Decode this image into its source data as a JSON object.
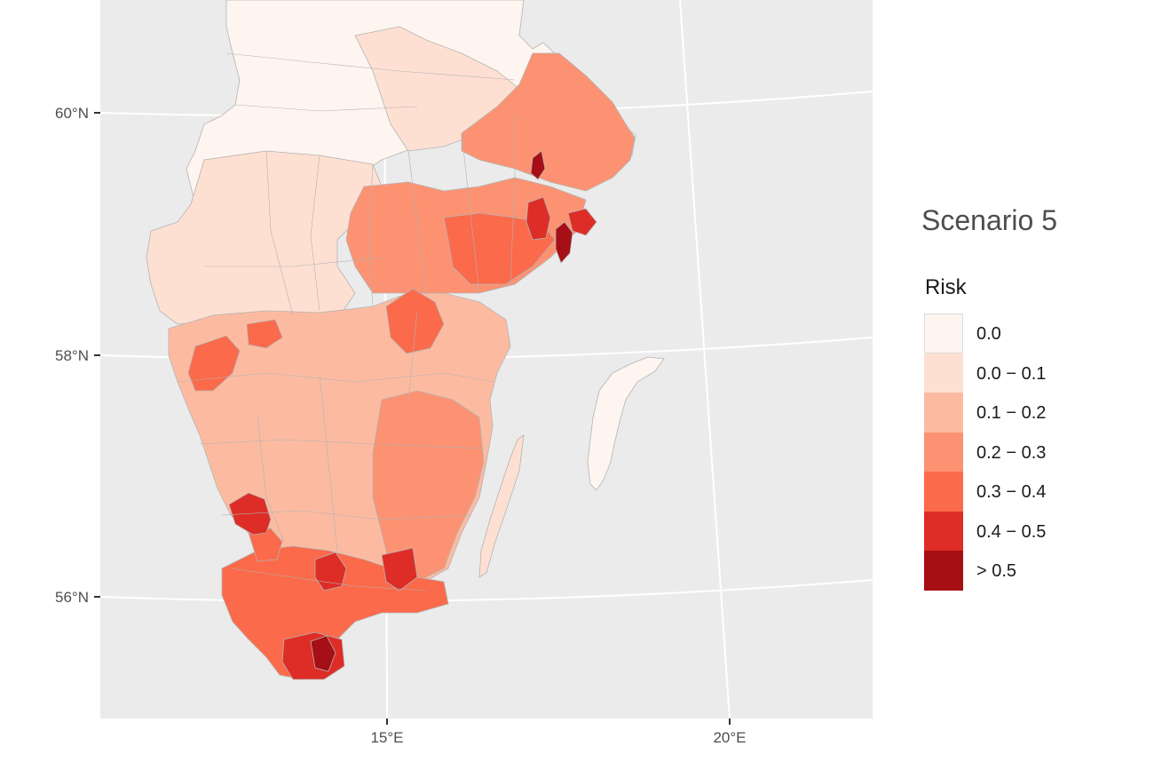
{
  "map": {
    "title": "Scenario 5",
    "legend_title": "Risk",
    "lat_labels": [
      "60°N",
      "58°N",
      "56°N"
    ],
    "lon_labels": [
      "15°E",
      "20°E"
    ],
    "panel_color": "#ebebeb",
    "gridline_color": "#ffffff",
    "border_color": "#b3b3b3",
    "legend": [
      {
        "label": "0.0",
        "color": "#fff5f0"
      },
      {
        "label": "0.0 − 0.1",
        "color": "#fee0d2"
      },
      {
        "label": "0.1 − 0.2",
        "color": "#fcbba1"
      },
      {
        "label": "0.2 − 0.3",
        "color": "#fc9272"
      },
      {
        "label": "0.3 − 0.4",
        "color": "#fb6a4a"
      },
      {
        "label": "0.4 − 0.5",
        "color": "#de2d26"
      },
      {
        "label": "> 0.5",
        "color": "#a50f15"
      }
    ]
  }
}
